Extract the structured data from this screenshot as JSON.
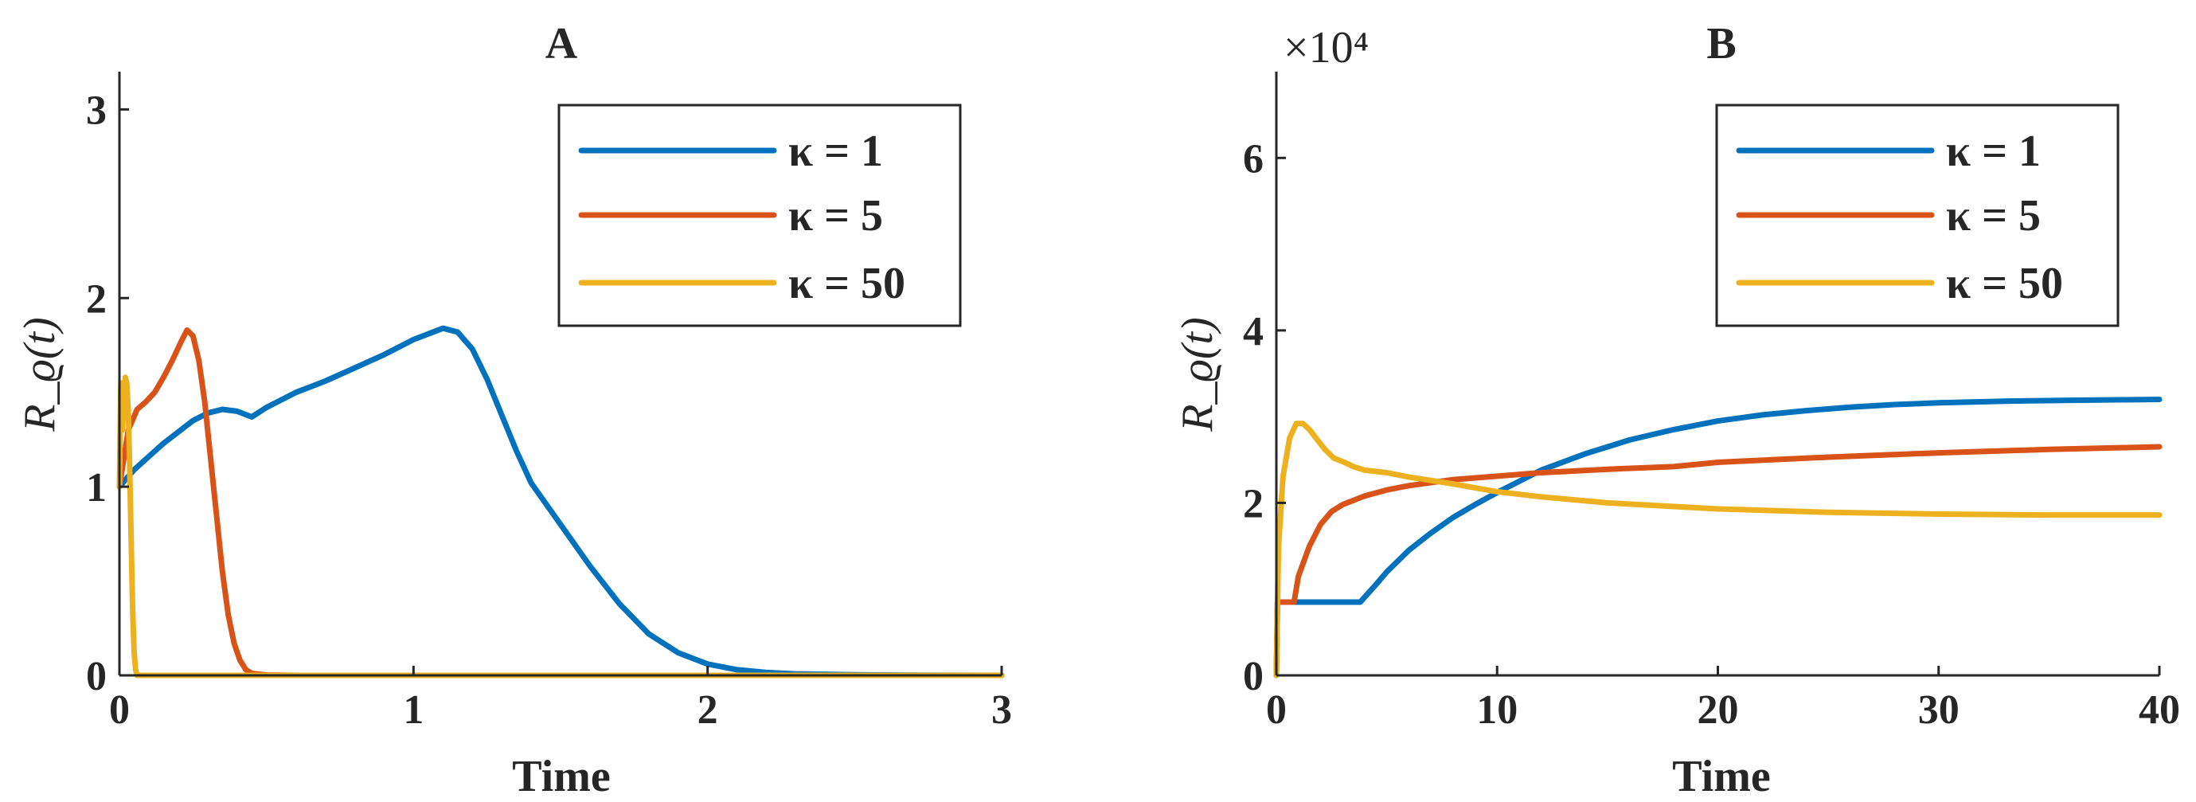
{
  "colors": {
    "blue": "#0072BD",
    "orange": "#D95319",
    "yellow": "#EDB120"
  },
  "chart_data": [
    {
      "type": "line",
      "title": "A",
      "xlabel": "Time",
      "ylabel": "R_ϱ(t)",
      "xlim": [
        0,
        3
      ],
      "ylim": [
        0,
        3.2
      ],
      "xticks": [
        0,
        1,
        2,
        3
      ],
      "yticks": [
        0,
        1,
        2,
        3
      ],
      "xtick_labels": [
        "0",
        "1",
        "2",
        "3"
      ],
      "ytick_labels": [
        "0",
        "1",
        "2",
        "3"
      ],
      "y_exponent_label": "",
      "legend_position": "top-right",
      "grid": false,
      "series": [
        {
          "name": "κ = 1",
          "color": "#0072BD",
          "x": [
            0,
            0.05,
            0.1,
            0.15,
            0.2,
            0.25,
            0.3,
            0.35,
            0.4,
            0.45,
            0.5,
            0.6,
            0.7,
            0.8,
            0.9,
            1.0,
            1.05,
            1.1,
            1.15,
            1.2,
            1.25,
            1.3,
            1.35,
            1.4,
            1.5,
            1.6,
            1.7,
            1.8,
            1.9,
            2.0,
            2.1,
            2.2,
            2.3,
            2.5,
            2.7,
            3.0
          ],
          "y": [
            1.0,
            1.09,
            1.16,
            1.23,
            1.29,
            1.35,
            1.39,
            1.41,
            1.4,
            1.37,
            1.42,
            1.5,
            1.56,
            1.63,
            1.7,
            1.78,
            1.81,
            1.84,
            1.82,
            1.73,
            1.57,
            1.38,
            1.19,
            1.02,
            0.8,
            0.58,
            0.38,
            0.22,
            0.12,
            0.06,
            0.03,
            0.015,
            0.008,
            0.003,
            0.001,
            0.0
          ]
        },
        {
          "name": "κ = 5",
          "color": "#D95319",
          "x": [
            0,
            0.03,
            0.06,
            0.09,
            0.12,
            0.15,
            0.18,
            0.21,
            0.23,
            0.25,
            0.27,
            0.29,
            0.31,
            0.33,
            0.35,
            0.37,
            0.39,
            0.41,
            0.43,
            0.45,
            0.5,
            0.6,
            1.0,
            3.0
          ],
          "y": [
            1.0,
            1.3,
            1.41,
            1.45,
            1.5,
            1.58,
            1.67,
            1.77,
            1.83,
            1.8,
            1.67,
            1.45,
            1.15,
            0.85,
            0.55,
            0.32,
            0.17,
            0.08,
            0.03,
            0.01,
            0.002,
            0.0,
            0.0,
            0.0
          ]
        },
        {
          "name": "κ = 50",
          "color": "#EDB120",
          "x": [
            0,
            0.005,
            0.01,
            0.015,
            0.02,
            0.025,
            0.03,
            0.035,
            0.04,
            0.045,
            0.05,
            0.055,
            0.06,
            0.08,
            0.2,
            3.0
          ],
          "y": [
            1.0,
            1.55,
            1.3,
            1.45,
            1.58,
            1.55,
            1.4,
            1.1,
            0.7,
            0.35,
            0.12,
            0.03,
            0.0,
            0.0,
            0.0,
            0.0
          ]
        }
      ]
    },
    {
      "type": "line",
      "title": "B",
      "xlabel": "Time",
      "ylabel": "R_ϱ(t)",
      "xlim": [
        0,
        40
      ],
      "ylim": [
        0,
        7
      ],
      "xticks": [
        0,
        10,
        20,
        30,
        40
      ],
      "yticks": [
        0,
        2,
        4,
        6
      ],
      "xtick_labels": [
        "0",
        "10",
        "20",
        "30",
        "40"
      ],
      "ytick_labels": [
        "0",
        "2",
        "4",
        "6"
      ],
      "y_exponent_label": "×10⁴",
      "legend_position": "top-right",
      "grid": false,
      "series": [
        {
          "name": "κ = 1",
          "color": "#0072BD",
          "x": [
            0,
            0.05,
            0.1,
            0.2,
            0.5,
            1,
            2,
            3,
            3.8,
            4.5,
            5,
            6,
            7,
            8,
            9,
            10,
            12,
            14,
            16,
            18,
            20,
            22,
            24,
            26,
            28,
            30,
            33,
            36,
            40
          ],
          "y": [
            0,
            0.85,
            0.85,
            0.85,
            0.85,
            0.85,
            0.85,
            0.85,
            0.85,
            1.05,
            1.2,
            1.45,
            1.65,
            1.83,
            1.98,
            2.12,
            2.38,
            2.57,
            2.73,
            2.85,
            2.95,
            3.02,
            3.07,
            3.11,
            3.14,
            3.16,
            3.18,
            3.19,
            3.2
          ]
        },
        {
          "name": "κ = 5",
          "color": "#D95319",
          "x": [
            0,
            0.05,
            0.1,
            0.5,
            0.8,
            1.0,
            1.5,
            2,
            2.5,
            3,
            4,
            5,
            6,
            8,
            10,
            12,
            15,
            18,
            20,
            25,
            30,
            35,
            40
          ],
          "y": [
            0,
            0.85,
            0.85,
            0.85,
            0.85,
            1.15,
            1.5,
            1.75,
            1.9,
            1.98,
            2.08,
            2.15,
            2.2,
            2.27,
            2.31,
            2.35,
            2.39,
            2.42,
            2.47,
            2.53,
            2.58,
            2.62,
            2.65
          ]
        },
        {
          "name": "κ = 50",
          "color": "#EDB120",
          "x": [
            0,
            0.05,
            0.1,
            0.3,
            0.6,
            0.9,
            1.2,
            1.5,
            1.8,
            2.2,
            2.6,
            3.0,
            3.5,
            4,
            5,
            6,
            8,
            10,
            12,
            15,
            20,
            25,
            30,
            35,
            40
          ],
          "y": [
            0,
            0.8,
            1.5,
            2.3,
            2.75,
            2.92,
            2.92,
            2.85,
            2.75,
            2.62,
            2.52,
            2.48,
            2.42,
            2.38,
            2.35,
            2.3,
            2.22,
            2.13,
            2.07,
            2.0,
            1.93,
            1.89,
            1.87,
            1.86,
            1.86
          ]
        }
      ]
    }
  ]
}
